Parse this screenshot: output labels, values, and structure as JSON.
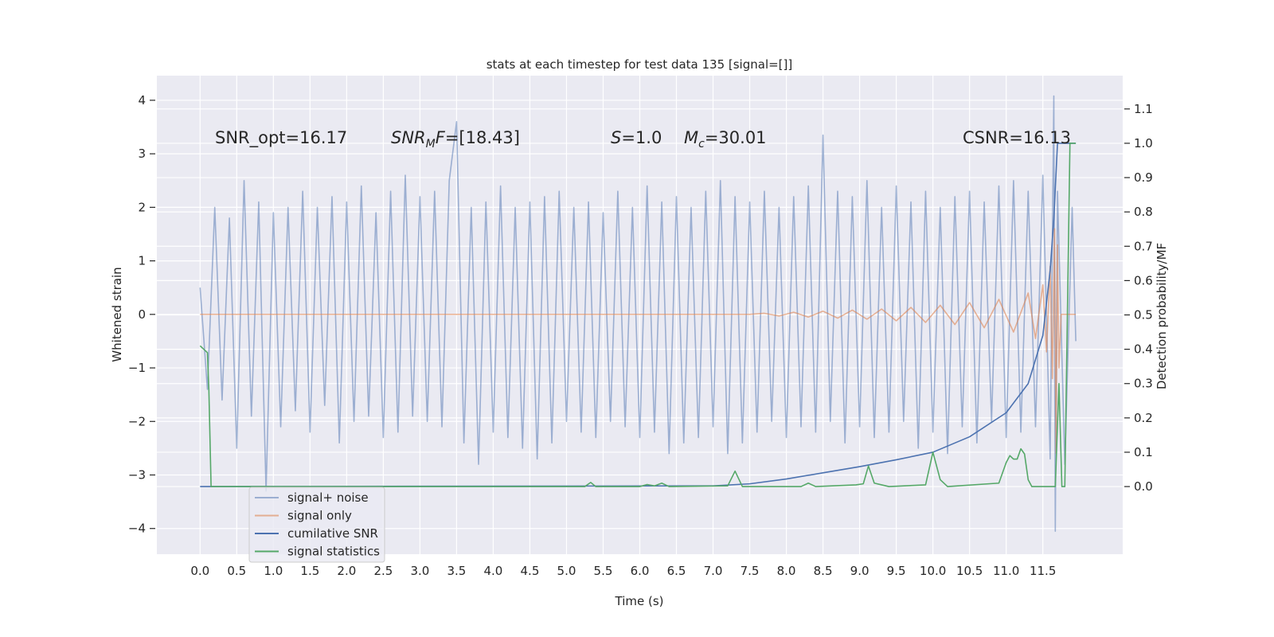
{
  "chart_data": {
    "type": "line",
    "title": "stats at each timestep for test data 135 [signal=[]]",
    "xlabel": "Time (s)",
    "ylabel": "Whitened strain",
    "y2label": "Detection probability/MF",
    "annotations": [
      {
        "parts": [
          "SNR_opt=16.17"
        ]
      },
      {
        "parts": [
          "SNR",
          "M",
          "F",
          "=[18.43]"
        ]
      },
      {
        "parts": [
          "S",
          "=1.0"
        ]
      },
      {
        "parts": [
          "M",
          "c",
          "=30.01"
        ]
      },
      {
        "parts": [
          "CSNR=16.13"
        ]
      }
    ],
    "xlim": [
      -0.59,
      12.59
    ],
    "xticks": [
      {
        "value": 0,
        "label": "0.0"
      },
      0.5,
      {
        "value": 1,
        "label": "1.0"
      },
      1.5,
      {
        "value": 2,
        "label": "2.0"
      },
      2.5,
      {
        "value": 3,
        "label": "3.0"
      },
      3.5,
      {
        "value": 4,
        "label": "4.0"
      },
      4.5,
      {
        "value": 5,
        "label": "5.0"
      },
      5.5,
      {
        "value": 6,
        "label": "6.0"
      },
      6.5,
      {
        "value": 7,
        "label": "7.0"
      },
      7.5,
      {
        "value": 8,
        "label": "8.0"
      },
      8.5,
      {
        "value": 9,
        "label": "9.0"
      },
      9.5,
      {
        "value": 10,
        "label": "10.0"
      },
      10.5,
      {
        "value": 11,
        "label": "11.0"
      },
      11.5
    ],
    "ylim": [
      -4.48,
      4.46
    ],
    "yticks": [
      {
        "value": -4,
        "label": "−4"
      },
      {
        "value": -3,
        "label": "−3"
      },
      {
        "value": -2,
        "label": "−2"
      },
      {
        "value": -1,
        "label": "−1"
      },
      0,
      1,
      2,
      3,
      4
    ],
    "y2lim": [
      -0.197,
      1.197
    ],
    "y2ticks": [
      {
        "value": 0,
        "label": "0.0"
      },
      0.1,
      0.2,
      0.3,
      0.4,
      0.5,
      0.6,
      0.7,
      0.8,
      0.9,
      {
        "value": 1,
        "label": "1.0"
      },
      1.1
    ],
    "grid": true,
    "legend": "lower left",
    "series": [
      {
        "name": "signal+ noise",
        "color": "#4c72b0",
        "opacity": 0.5,
        "x": [
          0,
          0.1,
          0.2,
          0.3,
          0.4,
          0.5,
          0.6,
          0.7,
          0.8,
          0.9,
          1,
          1.1,
          1.2,
          1.3,
          1.4,
          1.5,
          1.6,
          1.7,
          1.8,
          1.9,
          2,
          2.1,
          2.2,
          2.3,
          2.4,
          2.5,
          2.6,
          2.7,
          2.8,
          2.9,
          3,
          3.1,
          3.2,
          3.3,
          3.4,
          3.5,
          3.6,
          3.7,
          3.8,
          3.9,
          4,
          4.1,
          4.2,
          4.3,
          4.4,
          4.5,
          4.6,
          4.7,
          4.8,
          4.9,
          5,
          5.1,
          5.2,
          5.3,
          5.4,
          5.5,
          5.6,
          5.7,
          5.8,
          5.9,
          6,
          6.1,
          6.2,
          6.3,
          6.4,
          6.5,
          6.6,
          6.7,
          6.8,
          6.9,
          7,
          7.1,
          7.2,
          7.3,
          7.4,
          7.5,
          7.6,
          7.7,
          7.8,
          7.9,
          8,
          8.1,
          8.2,
          8.3,
          8.4,
          8.5,
          8.6,
          8.7,
          8.8,
          8.9,
          9,
          9.1,
          9.2,
          9.3,
          9.4,
          9.5,
          9.6,
          9.7,
          9.8,
          9.9,
          10,
          10.1,
          10.2,
          10.3,
          10.4,
          10.5,
          10.6,
          10.7,
          10.8,
          10.9,
          11,
          11.1,
          11.2,
          11.3,
          11.4,
          11.5,
          11.6,
          11.65,
          11.67,
          11.7,
          11.8,
          11.9,
          11.95
        ],
        "values": [
          0.5,
          -1.4,
          2.0,
          -1.6,
          1.8,
          -2.5,
          2.5,
          -1.9,
          2.1,
          -3.3,
          1.9,
          -2.1,
          2.0,
          -1.8,
          2.3,
          -2.2,
          2.0,
          -1.7,
          2.2,
          -2.4,
          2.1,
          -2.0,
          2.4,
          -1.9,
          1.9,
          -2.3,
          2.3,
          -2.2,
          2.6,
          -1.9,
          2.2,
          -2.0,
          2.3,
          -2.1,
          2.5,
          3.6,
          -2.4,
          2.0,
          -2.8,
          2.1,
          -2.2,
          2.4,
          -2.3,
          2.0,
          -2.5,
          2.1,
          -2.7,
          2.2,
          -2.4,
          2.3,
          -2.0,
          2.0,
          -2.2,
          2.1,
          -2.3,
          1.9,
          -2.0,
          2.3,
          -2.1,
          2.0,
          -2.3,
          2.4,
          -2.2,
          2.1,
          -2.6,
          2.2,
          -2.4,
          2.0,
          -2.3,
          2.3,
          -2.1,
          2.5,
          -2.6,
          2.2,
          -2.4,
          2.1,
          -2.2,
          2.3,
          -2.0,
          2.0,
          -2.3,
          2.2,
          -2.1,
          2.4,
          -2.2,
          3.35,
          -2.0,
          2.3,
          -2.4,
          2.2,
          -2.1,
          2.5,
          -2.3,
          2.0,
          -2.2,
          2.4,
          -2.0,
          2.1,
          -2.5,
          2.3,
          -2.2,
          2.0,
          -2.6,
          2.2,
          -2.1,
          2.3,
          -2.4,
          2.1,
          -2.0,
          2.4,
          -2.3,
          2.5,
          -2.2,
          2.3,
          -2.1,
          2.6,
          -2.7,
          4.08,
          -4.05,
          2.3,
          -2.8,
          2.0,
          -0.5
        ]
      },
      {
        "name": "signal only",
        "color": "#dd8452",
        "opacity": 0.6,
        "x": [
          0,
          7.5,
          7.7,
          7.9,
          8.1,
          8.3,
          8.5,
          8.7,
          8.9,
          9.1,
          9.3,
          9.5,
          9.7,
          9.9,
          10.1,
          10.3,
          10.5,
          10.7,
          10.9,
          11.1,
          11.3,
          11.4,
          11.5,
          11.55,
          11.6,
          11.63,
          11.66,
          11.68,
          11.7,
          11.72,
          11.75,
          11.95
        ],
        "values": [
          0,
          0,
          0.02,
          -0.03,
          0.04,
          -0.05,
          0.06,
          -0.07,
          0.08,
          -0.09,
          0.1,
          -0.12,
          0.13,
          -0.15,
          0.17,
          -0.19,
          0.22,
          -0.25,
          0.28,
          -0.33,
          0.4,
          -0.45,
          0.55,
          -0.7,
          0.9,
          -1.2,
          1.6,
          -2.6,
          1.3,
          -1.0,
          0,
          0
        ]
      },
      {
        "name": "cumilative SNR",
        "color": "#4c72b0",
        "axis": "y2",
        "x": [
          0,
          7.0,
          7.5,
          8.0,
          8.5,
          9.0,
          9.5,
          10.0,
          10.5,
          11.0,
          11.3,
          11.5,
          11.6,
          11.65,
          11.7,
          11.95
        ],
        "values": [
          0,
          0.002,
          0.008,
          0.022,
          0.04,
          0.058,
          0.078,
          0.1,
          0.145,
          0.215,
          0.3,
          0.44,
          0.63,
          0.78,
          1.0,
          1.0
        ]
      },
      {
        "name": "signal statistics",
        "color": "#55a868",
        "axis": "y2",
        "x": [
          0,
          0.1,
          0.12,
          0.15,
          5.25,
          5.33,
          5.4,
          6.0,
          6.1,
          6.2,
          6.3,
          6.4,
          7.2,
          7.3,
          7.4,
          8.2,
          8.3,
          8.4,
          8.95,
          9.05,
          9.12,
          9.2,
          9.3,
          9.4,
          9.9,
          10.0,
          10.1,
          10.2,
          10.9,
          11.0,
          11.05,
          11.1,
          11.15,
          11.2,
          11.25,
          11.3,
          11.35,
          11.67,
          11.72,
          11.76,
          11.8,
          11.87,
          11.95
        ],
        "values": [
          0.41,
          0.39,
          0.28,
          0,
          0,
          0.012,
          0,
          0,
          0.006,
          0.002,
          0.01,
          0,
          0.002,
          0.045,
          0,
          0,
          0.01,
          0,
          0.005,
          0.008,
          0.06,
          0.01,
          0.005,
          0,
          0.005,
          0.1,
          0.02,
          0,
          0.01,
          0.07,
          0.09,
          0.08,
          0.08,
          0.11,
          0.095,
          0.02,
          0,
          0,
          0.3,
          0,
          0,
          1.0,
          1.0
        ]
      }
    ]
  }
}
